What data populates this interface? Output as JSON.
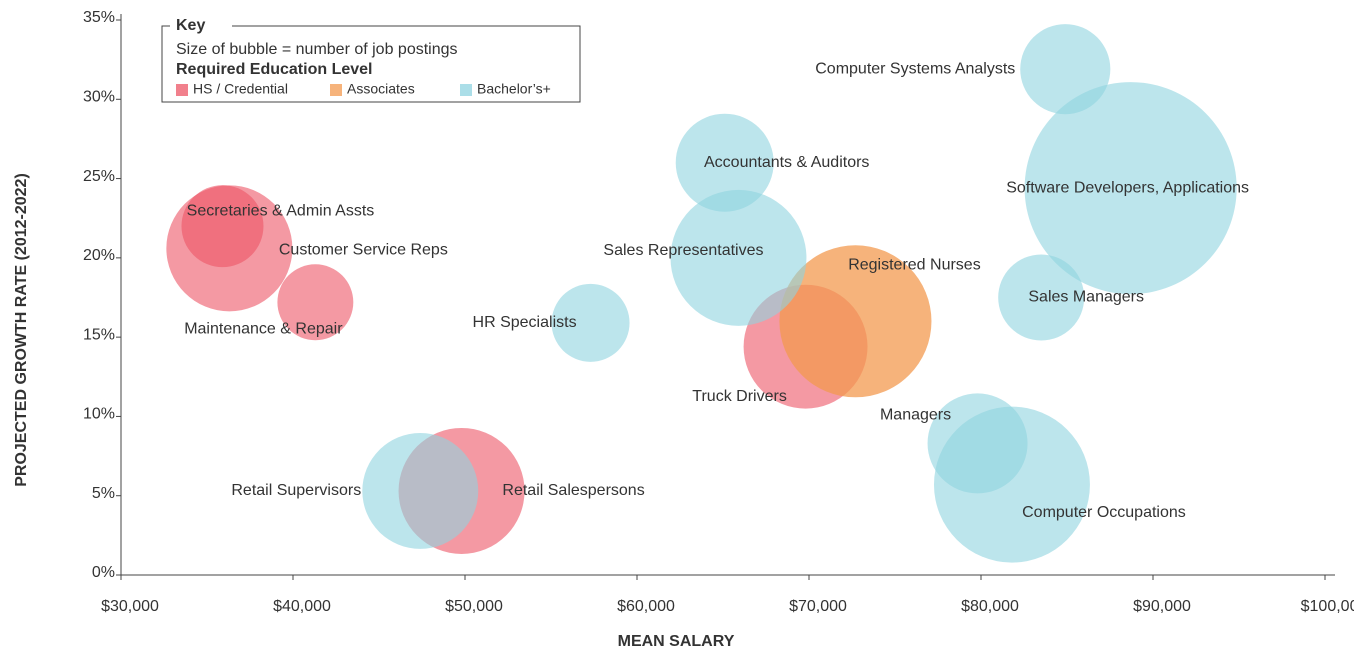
{
  "chart_data": {
    "type": "bubble",
    "x_label": "MEAN SALARY",
    "y_label": "PROJECTED GROWTH RATE (2012-2022)",
    "legend_title": "Key",
    "legend_note": "Size of bubble = number of job  postings",
    "legend_subtitle": "Required Education Level",
    "xlim": [
      30000,
      100000
    ],
    "ylim": [
      0,
      35
    ],
    "xticks": [
      {
        "value": 30000,
        "label": "$30,000"
      },
      {
        "value": 40000,
        "label": "$40,000"
      },
      {
        "value": 50000,
        "label": "$50,000"
      },
      {
        "value": 60000,
        "label": "$60,000"
      },
      {
        "value": 70000,
        "label": "$70,000"
      },
      {
        "value": 80000,
        "label": "$80,000"
      },
      {
        "value": 90000,
        "label": "$90,000"
      },
      {
        "value": 100000,
        "label": "$100,000"
      }
    ],
    "yticks": [
      {
        "value": 0,
        "label": "0%"
      },
      {
        "value": 5,
        "label": "5%"
      },
      {
        "value": 10,
        "label": "10%"
      },
      {
        "value": 15,
        "label": "15%"
      },
      {
        "value": 20,
        "label": "20%"
      },
      {
        "value": 25,
        "label": "25%"
      },
      {
        "value": 30,
        "label": "30%"
      },
      {
        "value": 35,
        "label": "35%"
      }
    ],
    "series": [
      {
        "name": "HS / Credential",
        "color": "#ec5566",
        "labels": [
          "Customer Service Reps",
          "Secretaries & Admin Assts",
          "Maintenance & Repair",
          "Retail Salespersons",
          "Truck Drivers"
        ],
        "x": [
          36300,
          35900,
          41300,
          49800,
          69800
        ],
        "values": [
          20.6,
          22.0,
          17.2,
          5.3,
          14.4
        ],
        "sizes": [
          39.7,
          16.8,
          14.4,
          39.7,
          38.4
        ]
      },
      {
        "name": "Associates",
        "color": "#f39a4f",
        "labels": [
          "Registered Nurses"
        ],
        "x": [
          72700
        ],
        "values": [
          16.0
        ],
        "sizes": [
          57.8
        ]
      },
      {
        "name": "Bachelor’s+",
        "color": "#8fd3e0",
        "labels": [
          "HR Specialists",
          "Retail Supervisors",
          "Accountants & Auditors",
          "Sales Representatives",
          "Computer Systems Analysts",
          "Software Developers, Applications",
          "Sales Managers",
          "Managers",
          "Computer Occupations"
        ],
        "x": [
          57300,
          47400,
          65100,
          65900,
          84900,
          88700,
          83500,
          79800,
          81800
        ],
        "values": [
          15.9,
          5.3,
          26.0,
          20.0,
          31.9,
          24.4,
          17.5,
          8.3,
          5.7
        ],
        "sizes": [
          15.2,
          33.6,
          24.0,
          46.2,
          20.3,
          112.4,
          18.5,
          25.0,
          60.8
        ]
      }
    ]
  }
}
